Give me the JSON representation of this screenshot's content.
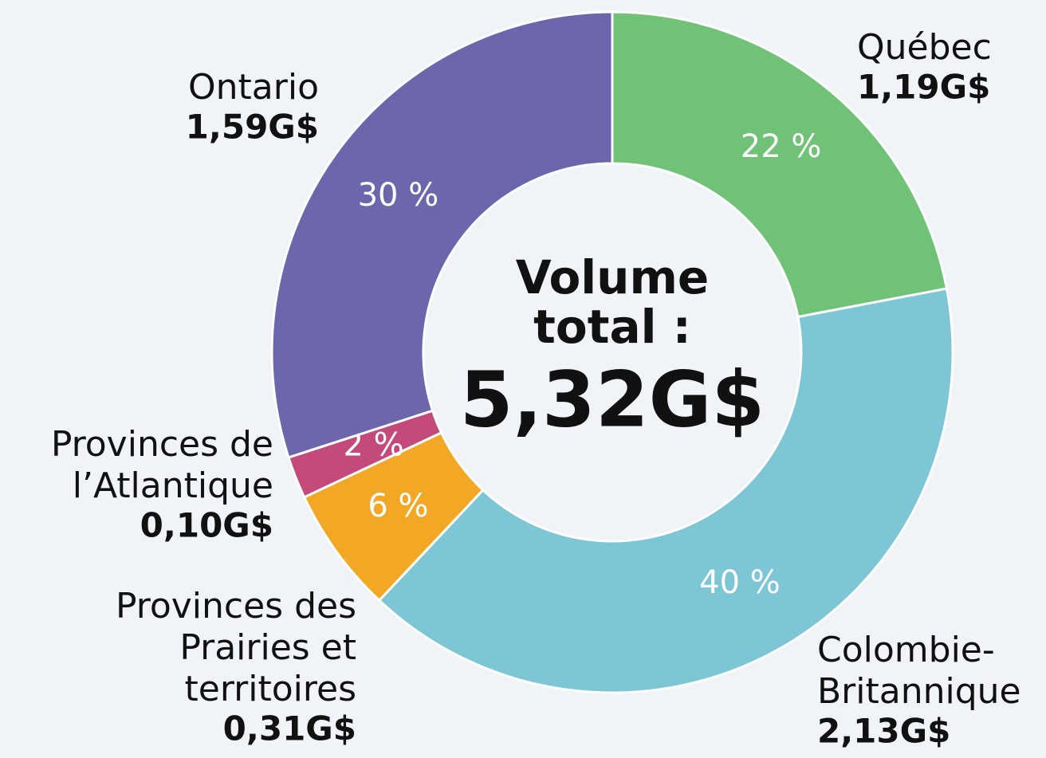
{
  "chart_data": {
    "type": "donut",
    "categories": [
      "Québec",
      "Colombie-\nBritannique",
      "Provinces des\nPrairies et\nterritoires",
      "Provinces de\nl’Atlantique",
      "Ontario"
    ],
    "values": [
      22,
      40,
      6,
      2,
      30
    ],
    "value_labels": [
      "22 %",
      "40 %",
      "6 %",
      "2 %",
      "30 %"
    ],
    "amounts": [
      1.19,
      2.13,
      0.31,
      0.1,
      1.59
    ],
    "amount_labels": [
      "1,19G$",
      "2,13G$",
      "0,31G$",
      "0,10G$",
      "1,59G$"
    ],
    "colors": [
      "#6fc276",
      "#7cc6d5",
      "#f2a825",
      "#c44a7c",
      "#6c66ad"
    ],
    "center_title": "Volume\ntotal :",
    "total": 5.32,
    "total_label": "5,32G$"
  }
}
